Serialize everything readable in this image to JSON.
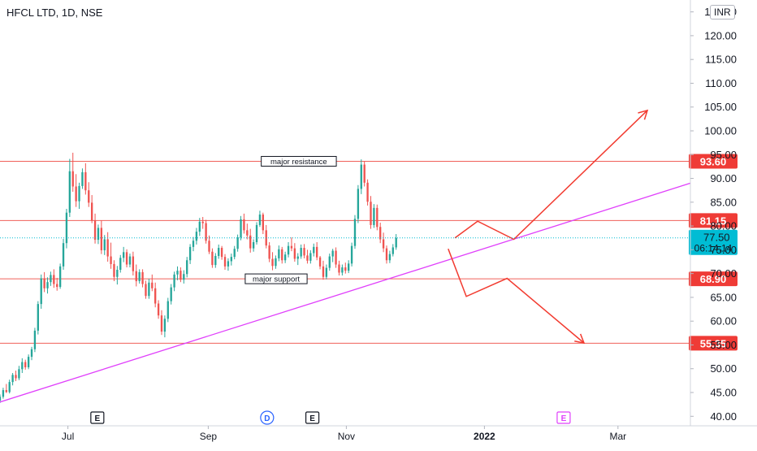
{
  "header": {
    "symbol_title": "HFCL LTD, 1D, NSE",
    "currency": "INR"
  },
  "colors": {
    "up": "#26a69a",
    "down": "#ef5350",
    "hline": "#f0605a",
    "trend": "#e040fb",
    "arrow": "#f23b30",
    "last_price": "#00bcd4",
    "axis_text": "#131722",
    "label_bg": "#ef3b36",
    "event_e": "#131722",
    "event_d": "#2962ff",
    "event_e2": "#e040fb"
  },
  "price_axis": {
    "ticks": [
      "40.00",
      "45.00",
      "50.00",
      "55.00",
      "60.00",
      "65.00",
      "70.00",
      "75.00",
      "80.00",
      "85.00",
      "90.00",
      "95.00",
      "100.00",
      "105.00",
      "110.00",
      "115.00",
      "120.00",
      "125.00"
    ],
    "range": [
      38,
      127.5
    ]
  },
  "time_axis": {
    "labels": [
      {
        "text": "Jul",
        "date": "2021-07-01",
        "bold": false
      },
      {
        "text": "Sep",
        "date": "2021-09-01",
        "bold": false
      },
      {
        "text": "Nov",
        "date": "2021-11-01",
        "bold": false
      },
      {
        "text": "2022",
        "date": "2022-01-01",
        "bold": true
      },
      {
        "text": "Mar",
        "date": "2022-03-01",
        "bold": false
      }
    ],
    "range": [
      "2021-06-01",
      "2022-04-02"
    ]
  },
  "levels": [
    {
      "price": 93.6,
      "label": "93.60"
    },
    {
      "price": 81.15,
      "label": "81.15"
    },
    {
      "price": 68.9,
      "label": "68.90"
    },
    {
      "price": 55.35,
      "label": "55.35"
    }
  ],
  "last_price": {
    "value": 77.5,
    "label": "77.50",
    "countdown": "06:14:14"
  },
  "annotations": [
    {
      "text": "major resistance",
      "date": "2021-10-11",
      "price": 93.6
    },
    {
      "text": "major support",
      "date": "2021-10-01",
      "price": 68.9
    }
  ],
  "trendline": [
    {
      "date": "2021-06-01",
      "price": 43.0
    },
    {
      "date": "2022-04-02",
      "price": 89.0
    }
  ],
  "projections": [
    {
      "name": "bullish",
      "points": [
        {
          "date": "2021-12-19",
          "price": 77.5
        },
        {
          "date": "2021-12-29",
          "price": 81.0
        },
        {
          "date": "2022-01-14",
          "price": 77.2
        },
        {
          "date": "2022-03-14",
          "price": 104.3
        }
      ]
    },
    {
      "name": "bearish",
      "points": [
        {
          "date": "2021-12-16",
          "price": 75.2
        },
        {
          "date": "2021-12-24",
          "price": 65.2
        },
        {
          "date": "2022-01-11",
          "price": 69.0
        },
        {
          "date": "2022-02-14",
          "price": 55.4
        }
      ]
    }
  ],
  "events": [
    {
      "text": "E",
      "date": "2021-07-14",
      "kind": "earnings"
    },
    {
      "text": "D",
      "date": "2021-09-27",
      "kind": "dividend"
    },
    {
      "text": "E",
      "date": "2021-10-17",
      "kind": "earnings"
    },
    {
      "text": "E",
      "date": "2022-02-05",
      "kind": "earnings_future"
    }
  ],
  "chart_data": {
    "type": "candlestick",
    "title": "HFCL LTD, 1D, NSE",
    "xlabel": "",
    "ylabel": "",
    "ylim": [
      38,
      127.5
    ],
    "ohlc_start": "2021-06-01",
    "ohlc_step_days": 1.4,
    "ohlc": [
      [
        43.3,
        44.6,
        42.8,
        44.1
      ],
      [
        44.1,
        46.0,
        43.7,
        45.5
      ],
      [
        45.5,
        46.8,
        44.9,
        45.1
      ],
      [
        45.1,
        47.7,
        44.8,
        47.2
      ],
      [
        47.2,
        49.1,
        46.5,
        48.7
      ],
      [
        48.7,
        49.6,
        47.4,
        48.0
      ],
      [
        48.0,
        50.6,
        47.6,
        49.9
      ],
      [
        49.9,
        52.2,
        49.1,
        51.4
      ],
      [
        51.4,
        51.9,
        49.8,
        50.3
      ],
      [
        50.3,
        53.0,
        49.9,
        52.5
      ],
      [
        52.5,
        54.6,
        51.8,
        54.1
      ],
      [
        54.1,
        58.6,
        53.5,
        58.0
      ],
      [
        58.0,
        64.2,
        57.2,
        63.6
      ],
      [
        63.6,
        69.8,
        62.6,
        69.0
      ],
      [
        69.0,
        70.3,
        66.1,
        66.9
      ],
      [
        66.9,
        69.2,
        65.8,
        68.2
      ],
      [
        68.2,
        70.4,
        67.4,
        69.7
      ],
      [
        69.7,
        70.9,
        67.0,
        67.8
      ],
      [
        67.8,
        69.1,
        66.4,
        67.2
      ],
      [
        67.2,
        72.1,
        66.8,
        71.5
      ],
      [
        71.5,
        77.3,
        70.8,
        76.4
      ],
      [
        76.4,
        83.6,
        75.3,
        82.8
      ],
      [
        82.8,
        94.1,
        81.9,
        91.5
      ],
      [
        91.5,
        95.4,
        87.2,
        88.3
      ],
      [
        88.3,
        90.9,
        84.0,
        85.2
      ],
      [
        85.2,
        89.1,
        83.6,
        88.4
      ],
      [
        88.4,
        92.1,
        87.8,
        91.3
      ],
      [
        91.3,
        93.2,
        86.6,
        87.5
      ],
      [
        87.5,
        89.2,
        84.0,
        84.9
      ],
      [
        84.9,
        86.5,
        80.6,
        81.2
      ],
      [
        81.2,
        82.6,
        76.3,
        77.1
      ],
      [
        77.1,
        80.3,
        76.2,
        79.6
      ],
      [
        79.6,
        81.2,
        74.1,
        74.9
      ],
      [
        74.9,
        78.1,
        73.9,
        77.2
      ],
      [
        77.2,
        78.7,
        72.5,
        73.6
      ],
      [
        73.6,
        76.5,
        71.0,
        72.0
      ],
      [
        72.0,
        72.8,
        68.4,
        69.3
      ],
      [
        69.3,
        71.6,
        67.7,
        70.8
      ],
      [
        70.8,
        73.9,
        70.2,
        73.3
      ],
      [
        73.3,
        75.6,
        72.4,
        74.5
      ],
      [
        74.5,
        75.1,
        71.3,
        71.9
      ],
      [
        71.9,
        74.2,
        71.3,
        73.6
      ],
      [
        73.6,
        74.6,
        69.6,
        70.5
      ],
      [
        70.5,
        71.9,
        67.3,
        68.4
      ],
      [
        68.4,
        70.9,
        67.9,
        70.3
      ],
      [
        70.3,
        70.9,
        67.1,
        67.8
      ],
      [
        67.8,
        68.5,
        64.7,
        65.3
      ],
      [
        65.3,
        68.9,
        64.7,
        68.1
      ],
      [
        68.1,
        69.8,
        66.3,
        66.9
      ],
      [
        66.9,
        68.1,
        62.9,
        63.7
      ],
      [
        63.7,
        64.4,
        60.5,
        61.2
      ],
      [
        61.2,
        62.3,
        57.1,
        57.8
      ],
      [
        57.8,
        61.2,
        56.6,
        60.5
      ],
      [
        60.5,
        64.9,
        59.8,
        64.2
      ],
      [
        64.2,
        67.8,
        63.5,
        67.1
      ],
      [
        67.1,
        70.4,
        66.3,
        69.8
      ],
      [
        69.8,
        71.5,
        68.6,
        70.6
      ],
      [
        70.6,
        71.3,
        68.2,
        68.7
      ],
      [
        68.7,
        70.7,
        67.9,
        69.9
      ],
      [
        69.9,
        73.5,
        69.2,
        72.8
      ],
      [
        72.8,
        76.2,
        72.0,
        75.6
      ],
      [
        75.6,
        77.7,
        74.7,
        76.9
      ],
      [
        76.9,
        79.6,
        76.1,
        78.8
      ],
      [
        78.8,
        81.7,
        77.9,
        80.9
      ],
      [
        80.9,
        81.9,
        79.4,
        80.6
      ],
      [
        80.6,
        81.3,
        76.3,
        76.9
      ],
      [
        76.9,
        78.0,
        74.1,
        74.6
      ],
      [
        74.6,
        75.3,
        71.2,
        71.8
      ],
      [
        71.8,
        74.3,
        71.2,
        73.7
      ],
      [
        73.7,
        76.1,
        73.1,
        75.4
      ],
      [
        75.4,
        75.8,
        72.9,
        73.5
      ],
      [
        73.5,
        74.1,
        70.8,
        71.5
      ],
      [
        71.5,
        73.2,
        70.6,
        72.6
      ],
      [
        72.6,
        74.2,
        71.7,
        73.5
      ],
      [
        73.5,
        75.8,
        73.0,
        75.2
      ],
      [
        75.2,
        78.2,
        74.6,
        77.6
      ],
      [
        77.6,
        82.1,
        77.0,
        81.4
      ],
      [
        81.4,
        82.6,
        78.4,
        79.1
      ],
      [
        79.1,
        80.5,
        77.2,
        78.0
      ],
      [
        78.0,
        79.4,
        74.4,
        75.3
      ],
      [
        75.3,
        77.2,
        74.6,
        76.6
      ],
      [
        76.6,
        80.8,
        76.1,
        80.2
      ],
      [
        80.2,
        83.2,
        79.8,
        82.4
      ],
      [
        82.4,
        82.8,
        78.3,
        79.1
      ],
      [
        79.1,
        80.2,
        75.3,
        75.9
      ],
      [
        75.9,
        76.6,
        72.4,
        73.1
      ],
      [
        73.1,
        74.5,
        70.7,
        71.6
      ],
      [
        71.6,
        73.8,
        71.0,
        73.2
      ],
      [
        73.2,
        75.9,
        72.6,
        75.1
      ],
      [
        75.1,
        75.6,
        72.1,
        72.8
      ],
      [
        72.8,
        74.6,
        72.2,
        74.0
      ],
      [
        74.0,
        76.6,
        73.4,
        75.8
      ],
      [
        75.8,
        77.6,
        74.7,
        75.3
      ],
      [
        75.3,
        76.4,
        72.5,
        73.1
      ],
      [
        73.1,
        74.3,
        71.8,
        73.6
      ],
      [
        73.6,
        76.1,
        73.1,
        75.4
      ],
      [
        75.4,
        76.2,
        73.2,
        73.8
      ],
      [
        73.8,
        75.0,
        72.1,
        72.7
      ],
      [
        72.7,
        74.9,
        72.1,
        74.3
      ],
      [
        74.3,
        76.3,
        73.6,
        75.6
      ],
      [
        75.6,
        76.6,
        72.8,
        73.4
      ],
      [
        73.4,
        73.7,
        70.9,
        71.5
      ],
      [
        71.5,
        72.7,
        68.7,
        69.3
      ],
      [
        69.3,
        71.9,
        68.8,
        71.2
      ],
      [
        71.2,
        74.2,
        70.6,
        73.6
      ],
      [
        73.6,
        75.2,
        72.4,
        74.8
      ],
      [
        74.8,
        75.5,
        71.2,
        71.9
      ],
      [
        71.9,
        72.7,
        69.6,
        70.2
      ],
      [
        70.2,
        71.9,
        69.6,
        71.3
      ],
      [
        71.3,
        72.3,
        70.0,
        70.6
      ],
      [
        70.6,
        72.8,
        70.1,
        72.1
      ],
      [
        72.1,
        76.5,
        71.5,
        75.8
      ],
      [
        75.8,
        82.3,
        75.2,
        81.5
      ],
      [
        81.5,
        88.6,
        80.6,
        87.8
      ],
      [
        87.8,
        94.0,
        86.7,
        92.9
      ],
      [
        92.9,
        93.6,
        88.3,
        89.1
      ],
      [
        89.1,
        89.8,
        84.3,
        85.1
      ],
      [
        85.1,
        86.3,
        79.4,
        80.2
      ],
      [
        80.2,
        84.6,
        79.6,
        83.8
      ],
      [
        83.8,
        84.5,
        79.1,
        79.8
      ],
      [
        79.8,
        80.7,
        76.4,
        77.2
      ],
      [
        77.2,
        78.6,
        74.5,
        75.3
      ],
      [
        75.3,
        75.9,
        72.1,
        72.8
      ],
      [
        72.8,
        74.8,
        72.2,
        74.1
      ],
      [
        74.1,
        76.2,
        73.6,
        75.5
      ],
      [
        75.5,
        78.3,
        75.0,
        77.5
      ]
    ],
    "last": 77.5,
    "horizontal_levels": [
      93.6,
      81.15,
      68.9,
      55.35
    ]
  }
}
